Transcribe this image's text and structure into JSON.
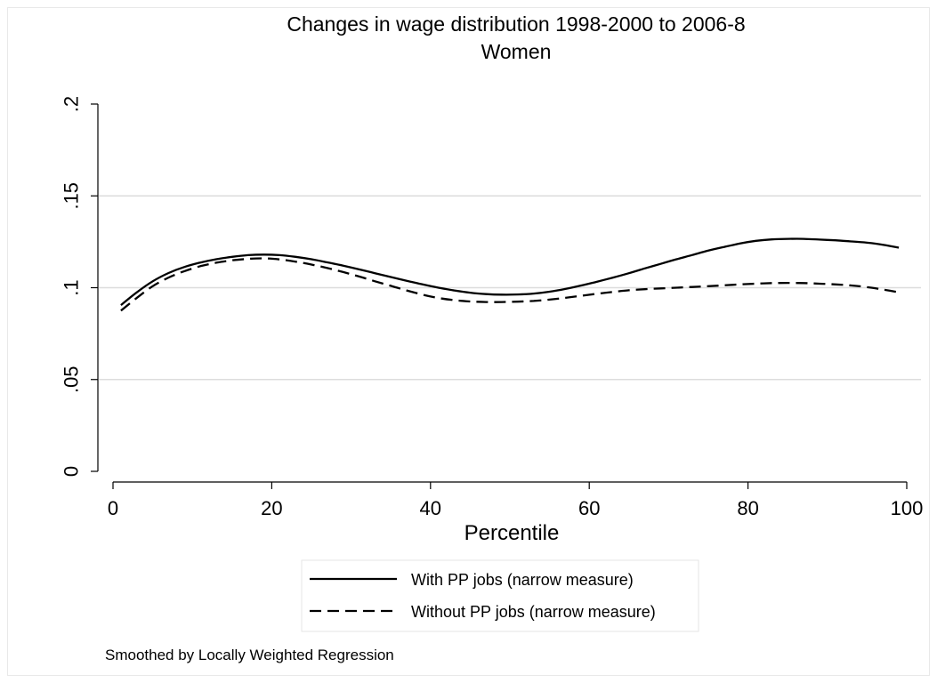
{
  "chart_data": {
    "type": "line",
    "title": "Changes in wage distribution 1998-2000 to 2006-8",
    "subtitle": "Women",
    "xlabel": "Percentile",
    "ylabel": "",
    "xlim": [
      0,
      100
    ],
    "ylim": [
      0,
      0.2
    ],
    "x_ticks": [
      0,
      20,
      40,
      60,
      80,
      100
    ],
    "x_tick_labels": [
      "0",
      "20",
      "40",
      "60",
      "80",
      "100"
    ],
    "y_ticks": [
      0,
      0.05,
      0.1,
      0.15,
      0.2
    ],
    "y_tick_labels": [
      "0",
      ".05",
      ".1",
      ".15",
      ".2"
    ],
    "grid": "horizontal",
    "legend_position": "bottom",
    "note": "Smoothed by Locally Weighted Regression",
    "series": [
      {
        "name": "With PP jobs (narrow measure)",
        "style": "solid",
        "x": [
          1,
          3,
          5,
          7,
          9,
          11,
          13,
          15,
          17,
          19,
          21,
          23,
          25,
          27,
          29,
          31,
          33,
          35,
          37,
          39,
          41,
          43,
          45,
          47,
          49,
          51,
          53,
          55,
          57,
          59,
          61,
          63,
          65,
          67,
          69,
          71,
          73,
          75,
          77,
          79,
          81,
          83,
          85,
          87,
          89,
          91,
          93,
          95,
          97,
          99
        ],
        "y": [
          0.0905,
          0.0975,
          0.1035,
          0.108,
          0.1113,
          0.1137,
          0.1155,
          0.1168,
          0.1177,
          0.118,
          0.1177,
          0.1168,
          0.1155,
          0.1138,
          0.112,
          0.11,
          0.1079,
          0.1058,
          0.1038,
          0.1018,
          0.1,
          0.0985,
          0.0973,
          0.0965,
          0.0962,
          0.0963,
          0.0968,
          0.0978,
          0.0993,
          0.1012,
          0.1033,
          0.1055,
          0.1079,
          0.1105,
          0.113,
          0.1155,
          0.1178,
          0.1202,
          0.1222,
          0.1241,
          0.1255,
          0.1263,
          0.1266,
          0.1266,
          0.1262,
          0.1258,
          0.1252,
          0.1245,
          0.1234,
          0.1218
        ]
      },
      {
        "name": "Without PP jobs (narrow measure)",
        "style": "dashed",
        "x": [
          1,
          3,
          5,
          7,
          9,
          11,
          13,
          15,
          17,
          19,
          21,
          23,
          25,
          27,
          29,
          31,
          33,
          35,
          37,
          39,
          41,
          43,
          45,
          47,
          49,
          51,
          53,
          55,
          57,
          59,
          61,
          63,
          65,
          67,
          69,
          71,
          73,
          75,
          77,
          79,
          81,
          83,
          85,
          87,
          89,
          91,
          93,
          95,
          97,
          99
        ],
        "y": [
          0.0875,
          0.0945,
          0.1008,
          0.1055,
          0.109,
          0.1117,
          0.1136,
          0.1149,
          0.1157,
          0.116,
          0.1154,
          0.1142,
          0.1126,
          0.1107,
          0.1085,
          0.1061,
          0.1035,
          0.101,
          0.0985,
          0.0962,
          0.0944,
          0.0932,
          0.0925,
          0.0922,
          0.0922,
          0.0924,
          0.0928,
          0.0935,
          0.0945,
          0.0956,
          0.0967,
          0.0977,
          0.0986,
          0.0992,
          0.0996,
          0.1,
          0.1004,
          0.1008,
          0.1013,
          0.1018,
          0.1022,
          0.1025,
          0.1026,
          0.1025,
          0.1022,
          0.1018,
          0.1012,
          0.1003,
          0.099,
          0.0975
        ]
      }
    ]
  }
}
